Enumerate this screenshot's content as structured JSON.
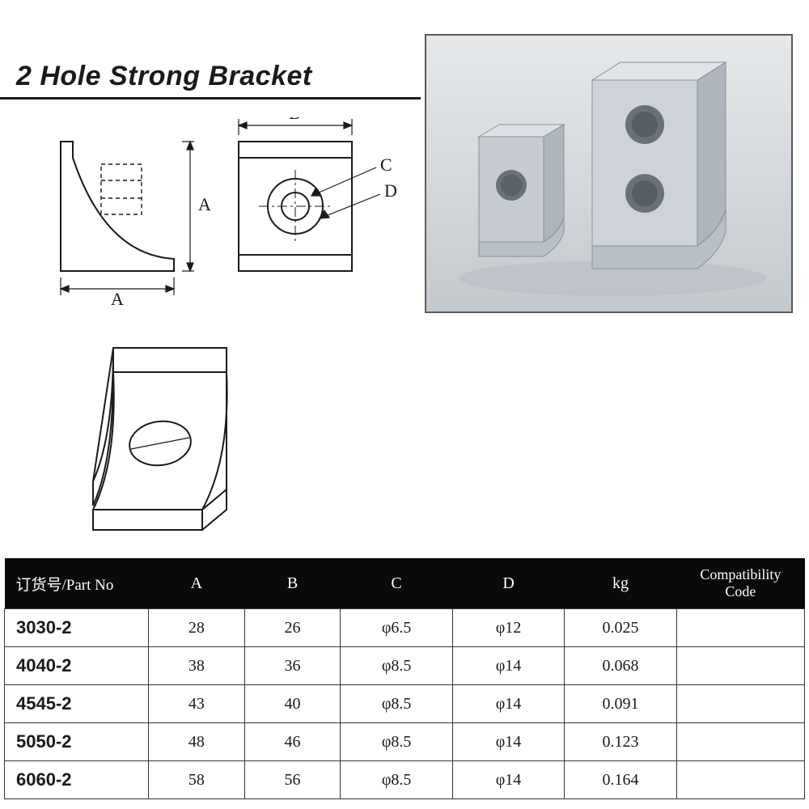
{
  "title": "2 Hole Strong Bracket",
  "diagram": {
    "labels": {
      "A": "A",
      "B": "B",
      "C": "C",
      "D": "D"
    },
    "stroke": "#1a1a1a",
    "stroke_width_main": 2,
    "stroke_width_dim": 1.2
  },
  "photo": {
    "border_color": "#5a5a5a",
    "bg_top": "#e6e8ea",
    "bg_bottom": "#c4c9ce",
    "bracket_fill_light": "#d0d4d8",
    "bracket_fill_mid": "#b8bdc3",
    "bracket_fill_dark": "#9ea5ac",
    "hole_fill": "#6a7178"
  },
  "table": {
    "header_bg": "#0a0a0a",
    "header_fg": "#ffffff",
    "border_color": "#333333",
    "columns": [
      "订货号/Part No",
      "A",
      "B",
      "C",
      "D",
      "kg",
      "Compatibility Code"
    ],
    "col_widths": [
      "18%",
      "12%",
      "12%",
      "14%",
      "14%",
      "14%",
      "16%"
    ],
    "rows": [
      [
        "3030-2",
        "28",
        "26",
        "φ6.5",
        "φ12",
        "0.025",
        ""
      ],
      [
        "4040-2",
        "38",
        "36",
        "φ8.5",
        "φ14",
        "0.068",
        ""
      ],
      [
        "4545-2",
        "43",
        "40",
        "φ8.5",
        "φ14",
        "0.091",
        ""
      ],
      [
        "5050-2",
        "48",
        "46",
        "φ8.5",
        "φ14",
        "0.123",
        ""
      ],
      [
        "6060-2",
        "58",
        "56",
        "φ8.5",
        "φ14",
        "0.164",
        ""
      ]
    ]
  }
}
